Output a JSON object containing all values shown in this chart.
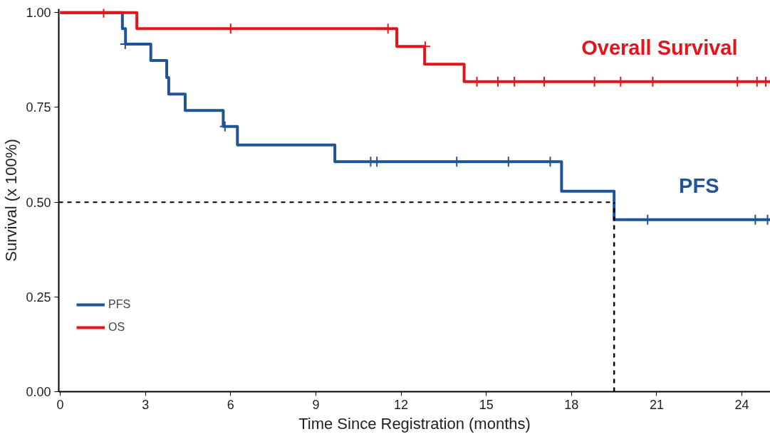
{
  "chart_data": {
    "type": "step",
    "xlabel": "Time Since Registration (months)",
    "ylabel": "Survival (x 100%)",
    "xlim": [
      -0.05,
      25.0
    ],
    "ylim": [
      0,
      1.01
    ],
    "xticks": [
      0,
      3,
      6,
      9,
      12,
      15,
      18,
      21,
      24
    ],
    "yticks": [
      {
        "value": 0,
        "label": "0.00"
      },
      {
        "value": 0.25,
        "label": "0.25"
      },
      {
        "value": 0.5,
        "label": "0.50"
      },
      {
        "value": 0.75,
        "label": "0.75"
      },
      {
        "value": 1,
        "label": "1.00"
      }
    ],
    "grid": false,
    "legend": "bottom left",
    "line_style": "solid",
    "series": [
      {
        "name": "PFS",
        "color": "#1f5597",
        "x": [
          0,
          2.19,
          2.3,
          3.19,
          3.75,
          3.82,
          4.4,
          5.74,
          6.24,
          9.67,
          17.65,
          19.5,
          25.0
        ],
        "values": [
          1.0,
          0.958,
          0.917,
          0.874,
          0.829,
          0.785,
          0.742,
          0.7,
          0.651,
          0.607,
          0.529,
          0.454,
          0.454
        ]
      },
      {
        "name": "OS",
        "color": "#e3141b",
        "x": [
          0,
          2.7,
          11.85,
          12.83,
          14.22,
          25.0
        ],
        "values": [
          1.0,
          0.958,
          0.911,
          0.864,
          0.818,
          0.818
        ]
      },
      {
        "type": "scatter",
        "marker": "cross",
        "color": "#1f5597",
        "x": [
          2.29,
          5.8,
          10.93,
          11.15,
          13.96,
          15.78,
          17.25,
          20.68,
          24.47,
          24.9
        ],
        "values": [
          0.917,
          0.7,
          0.607,
          0.607,
          0.607,
          0.607,
          0.607,
          0.454,
          0.454,
          0.454
        ]
      },
      {
        "type": "scatter",
        "marker": "cross",
        "color": "#e3141b",
        "x": [
          1.53,
          6.0,
          11.54,
          12.85,
          14.67,
          15.41,
          15.99,
          17.04,
          18.81,
          19.73,
          20.86,
          23.84,
          24.53,
          24.84
        ],
        "values": [
          1.0,
          0.958,
          0.958,
          0.911,
          0.818,
          0.818,
          0.818,
          0.818,
          0.818,
          0.818,
          0.818,
          0.818,
          0.818,
          0.818
        ]
      }
    ],
    "ref_lines": [
      {
        "axis": "y",
        "value": 0.5,
        "line_style": "dashed",
        "color": "#000000"
      },
      {
        "axis": "x",
        "value": 19.5,
        "line_style": "dashed",
        "color": "#000000"
      }
    ],
    "annotations": [
      "PFS",
      "Overall Survival"
    ]
  }
}
